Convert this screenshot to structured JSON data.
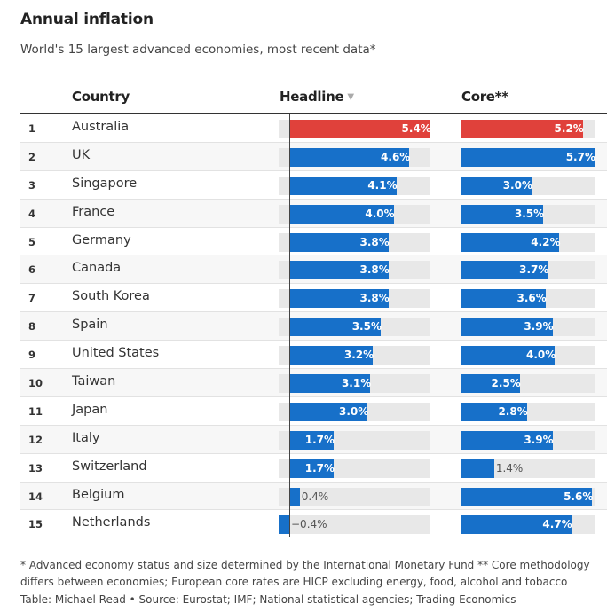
{
  "title": "Annual inflation",
  "subtitle": "World's 15 largest advanced economies, most recent data*",
  "columns": {
    "country": "Country",
    "headline": "Headline",
    "core": "Core**"
  },
  "sort_icon": "▼",
  "colors": {
    "highlight": "#e0413b",
    "bar": "#1770c9",
    "track": "#e8e8e8"
  },
  "notes": "* Advanced economy status and size determined by the International Monetary Fund ** Core methodology differs between economies; European core rates are HICP excluding energy, food, alcohol and tobacco",
  "credit": "Table: Michael Read • Source: Eurostat; IMF; National statistical agencies; Trading Economics",
  "chart_data": {
    "type": "table",
    "title": "Annual inflation",
    "subtitle": "World's 15 largest advanced economies, most recent data*",
    "sorted_by": "Headline",
    "sort_direction": "descending",
    "units": "%",
    "rows": [
      {
        "rank": "1",
        "country": "Australia",
        "headline": 5.4,
        "headline_label": "5.4%",
        "core": 5.2,
        "core_label": "5.2%",
        "highlight": true
      },
      {
        "rank": "2",
        "country": "UK",
        "headline": 4.6,
        "headline_label": "4.6%",
        "core": 5.7,
        "core_label": "5.7%"
      },
      {
        "rank": "3",
        "country": "Singapore",
        "headline": 4.1,
        "headline_label": "4.1%",
        "core": 3.0,
        "core_label": "3.0%"
      },
      {
        "rank": "4",
        "country": "France",
        "headline": 4.0,
        "headline_label": "4.0%",
        "core": 3.5,
        "core_label": "3.5%"
      },
      {
        "rank": "5",
        "country": "Germany",
        "headline": 3.8,
        "headline_label": "3.8%",
        "core": 4.2,
        "core_label": "4.2%"
      },
      {
        "rank": "6",
        "country": "Canada",
        "headline": 3.8,
        "headline_label": "3.8%",
        "core": 3.7,
        "core_label": "3.7%"
      },
      {
        "rank": "7",
        "country": "South Korea",
        "headline": 3.8,
        "headline_label": "3.8%",
        "core": 3.6,
        "core_label": "3.6%"
      },
      {
        "rank": "8",
        "country": "Spain",
        "headline": 3.5,
        "headline_label": "3.5%",
        "core": 3.9,
        "core_label": "3.9%"
      },
      {
        "rank": "9",
        "country": "United States",
        "headline": 3.2,
        "headline_label": "3.2%",
        "core": 4.0,
        "core_label": "4.0%"
      },
      {
        "rank": "10",
        "country": "Taiwan",
        "headline": 3.1,
        "headline_label": "3.1%",
        "core": 2.5,
        "core_label": "2.5%"
      },
      {
        "rank": "11",
        "country": "Japan",
        "headline": 3.0,
        "headline_label": "3.0%",
        "core": 2.8,
        "core_label": "2.8%"
      },
      {
        "rank": "12",
        "country": "Italy",
        "headline": 1.7,
        "headline_label": "1.7%",
        "core": 3.9,
        "core_label": "3.9%"
      },
      {
        "rank": "13",
        "country": "Switzerland",
        "headline": 1.7,
        "headline_label": "1.7%",
        "core": 1.4,
        "core_label": "1.4%"
      },
      {
        "rank": "14",
        "country": "Belgium",
        "headline": 0.4,
        "headline_label": "0.4%",
        "core": 5.6,
        "core_label": "5.6%"
      },
      {
        "rank": "15",
        "country": "Netherlands",
        "headline": -0.4,
        "headline_label": "−0.4%",
        "core": 4.7,
        "core_label": "4.7%"
      }
    ],
    "headline_range": [
      -0.4,
      5.4
    ],
    "core_range": [
      0,
      5.7
    ]
  }
}
